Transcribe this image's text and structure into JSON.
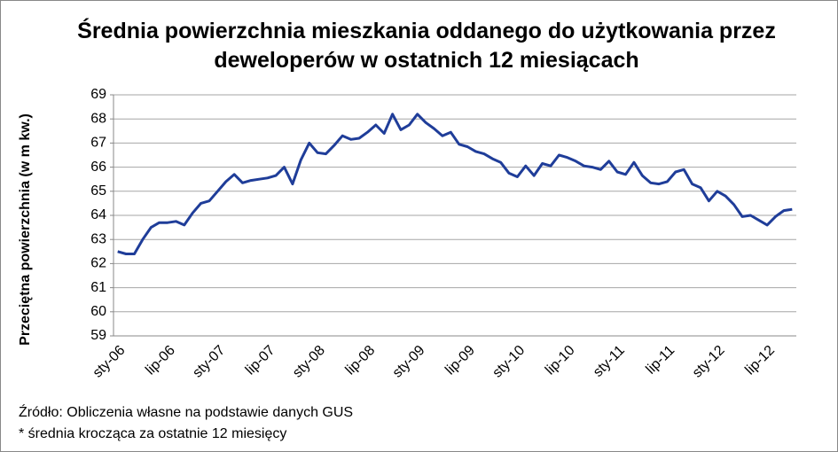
{
  "chart_data": {
    "type": "line",
    "title": "Średnia powierzchnia mieszkania oddanego do użytkowania przez deweloperów w ostatnich 12 miesiącach",
    "ylabel": "Przeciętna powierzchnia (w m kw.)",
    "source": "Źródło: Obliczenia własne na podstawie danych GUS",
    "note": "* średnia krocząca za ostatnie 12 miesięcy",
    "categories": [
      "sty-06",
      null,
      null,
      null,
      null,
      null,
      "lip-06",
      null,
      null,
      null,
      null,
      null,
      "sty-07",
      null,
      null,
      null,
      null,
      null,
      "lip-07",
      null,
      null,
      null,
      null,
      null,
      "sty-08",
      null,
      null,
      null,
      null,
      null,
      "lip-08",
      null,
      null,
      null,
      null,
      null,
      "sty-09",
      null,
      null,
      null,
      null,
      null,
      "lip-09",
      null,
      null,
      null,
      null,
      null,
      "sty-10",
      null,
      null,
      null,
      null,
      null,
      "lip-10",
      null,
      null,
      null,
      null,
      null,
      "sty-11",
      null,
      null,
      null,
      null,
      null,
      "lip-11",
      null,
      null,
      null,
      null,
      null,
      "sty-12",
      null,
      null,
      null,
      null,
      null,
      "lip-12",
      null,
      null,
      null
    ],
    "series": [
      {
        "name": null,
        "color": "#1f3d99",
        "values": [
          62.5,
          62.4,
          62.4,
          63.0,
          63.5,
          63.7,
          63.7,
          63.75,
          63.6,
          64.1,
          64.5,
          64.6,
          65.0,
          65.4,
          65.7,
          65.35,
          65.45,
          65.5,
          65.55,
          65.65,
          66.0,
          65.3,
          66.3,
          67.0,
          66.6,
          66.55,
          66.9,
          67.3,
          67.15,
          67.2,
          67.45,
          67.75,
          67.4,
          68.2,
          67.55,
          67.75,
          68.2,
          67.85,
          67.6,
          67.3,
          67.45,
          66.95,
          66.85,
          66.65,
          66.55,
          66.35,
          66.2,
          65.75,
          65.6,
          66.05,
          65.65,
          66.15,
          66.05,
          66.5,
          66.4,
          66.25,
          66.05,
          66.0,
          65.9,
          66.25,
          65.8,
          65.7,
          66.2,
          65.65,
          65.35,
          65.3,
          65.4,
          65.8,
          65.9,
          65.3,
          65.15,
          64.6,
          65.0,
          64.8,
          64.45,
          63.95,
          64.0,
          63.8,
          63.6,
          63.95,
          64.2,
          64.25
        ]
      }
    ],
    "ylim": [
      59,
      69
    ],
    "yticks": [
      59,
      60,
      61,
      62,
      63,
      64,
      65,
      66,
      67,
      68,
      69
    ],
    "grid": true
  }
}
